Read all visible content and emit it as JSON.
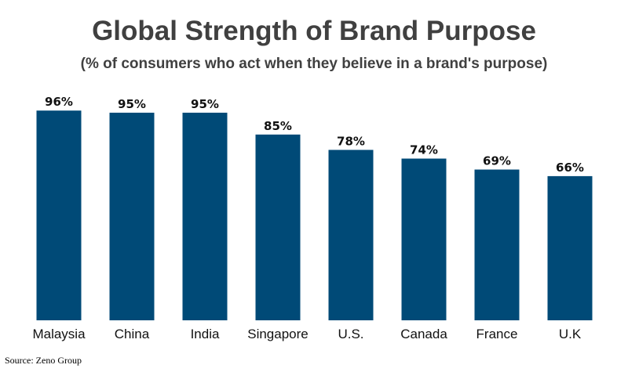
{
  "chart_data": {
    "type": "bar",
    "title": "Global Strength of Brand Purpose",
    "subtitle": "(% of consumers who act when they believe in a brand's purpose)",
    "categories": [
      "Malaysia",
      "China",
      "India",
      "Singapore",
      "U.S.",
      "Canada",
      "France",
      "U.K"
    ],
    "values": [
      96,
      95,
      95,
      85,
      78,
      74,
      69,
      66
    ],
    "value_labels": [
      "96%",
      "95%",
      "95%",
      "85%",
      "78%",
      "74%",
      "69%",
      "66%"
    ],
    "value_suffix": "%",
    "ylim": [
      0,
      100
    ],
    "grid": false,
    "legend": "none",
    "bar_color": "#004a77"
  },
  "source": "Source: Zeno Group"
}
